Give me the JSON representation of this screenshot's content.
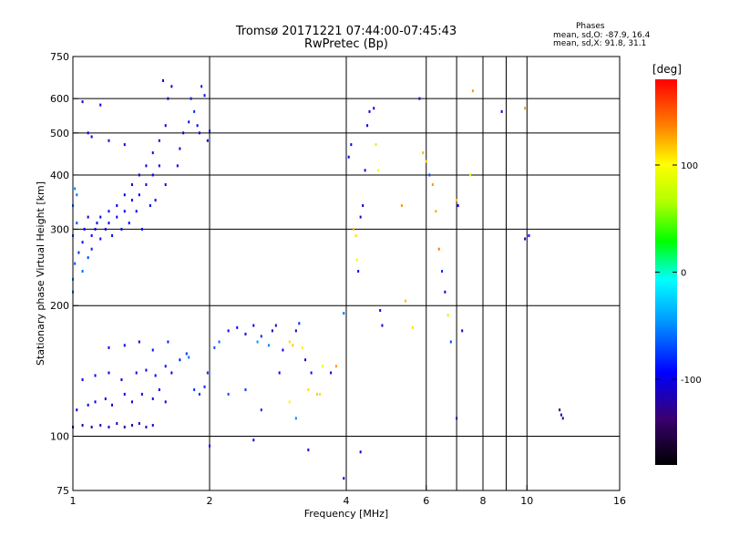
{
  "header": {
    "title": "Tromsø 20171221 07:44:00-07:45:43",
    "subtitle": "RwPretec (Bp)",
    "stats_heading": "Phases",
    "stats_o": "mean, sd,O: -87.9, 16.4",
    "stats_x": "mean, sd,X:  91.8, 31.1"
  },
  "colorbar": {
    "unit": "[deg]",
    "range": [
      -180,
      180
    ],
    "tick_values": [
      100,
      0,
      -100
    ],
    "tick_labels": [
      "100",
      "0",
      "-100"
    ]
  },
  "chart_data": {
    "type": "scatter",
    "xlabel": "Frequency [MHz]",
    "ylabel": "Stationary phase Virtual Height [km]",
    "xscale": "log",
    "yscale": "log",
    "xlim": [
      1,
      16
    ],
    "ylim": [
      75,
      750
    ],
    "grid": true,
    "x_ticks": [
      1,
      2,
      4,
      6,
      8,
      10,
      16
    ],
    "x_tick_labels": [
      "1",
      "2",
      "4",
      "6",
      "8",
      "10",
      "16"
    ],
    "x_gridlines": [
      2,
      4,
      6,
      7,
      8,
      9,
      10
    ],
    "y_ticks": [
      75,
      100,
      200,
      300,
      400,
      500,
      600,
      750
    ],
    "y_tick_labels": [
      "75",
      "100",
      "200",
      "300",
      "400",
      "500",
      "600",
      "750"
    ],
    "y_gridlines": [
      100,
      200,
      300,
      400,
      500,
      600
    ],
    "colorscale": "phase [deg], -180 (black) to 180 (red)",
    "points": [
      [
        1.0,
        215,
        -60
      ],
      [
        1.0,
        230,
        -55
      ],
      [
        1.01,
        250,
        -65
      ],
      [
        1.0,
        290,
        -75
      ],
      [
        1.02,
        310,
        -70
      ],
      [
        1.0,
        340,
        -60
      ],
      [
        1.02,
        360,
        -55
      ],
      [
        1.01,
        372,
        -50
      ],
      [
        1.03,
        265,
        -80
      ],
      [
        1.05,
        240,
        -60
      ],
      [
        1.05,
        280,
        -90
      ],
      [
        1.06,
        300,
        -95
      ],
      [
        1.08,
        258,
        -70
      ],
      [
        1.08,
        320,
        -100
      ],
      [
        1.1,
        270,
        -85
      ],
      [
        1.1,
        290,
        -95
      ],
      [
        1.12,
        300,
        -100
      ],
      [
        1.13,
        310,
        -95
      ],
      [
        1.15,
        285,
        -90
      ],
      [
        1.15,
        320,
        -95
      ],
      [
        1.18,
        300,
        -100
      ],
      [
        1.2,
        310,
        -95
      ],
      [
        1.2,
        330,
        -100
      ],
      [
        1.22,
        290,
        -90
      ],
      [
        1.25,
        320,
        -95
      ],
      [
        1.25,
        340,
        -100
      ],
      [
        1.28,
        300,
        -90
      ],
      [
        1.3,
        330,
        -95
      ],
      [
        1.3,
        360,
        -100
      ],
      [
        1.33,
        310,
        -95
      ],
      [
        1.35,
        350,
        -100
      ],
      [
        1.35,
        380,
        -105
      ],
      [
        1.38,
        330,
        -95
      ],
      [
        1.4,
        360,
        -100
      ],
      [
        1.4,
        400,
        -105
      ],
      [
        1.42,
        300,
        -90
      ],
      [
        1.45,
        380,
        -100
      ],
      [
        1.45,
        420,
        -105
      ],
      [
        1.48,
        340,
        -95
      ],
      [
        1.5,
        400,
        -100
      ],
      [
        1.5,
        450,
        -105
      ],
      [
        1.52,
        350,
        -95
      ],
      [
        1.55,
        420,
        -100
      ],
      [
        1.55,
        480,
        -105
      ],
      [
        1.6,
        380,
        -100
      ],
      [
        1.6,
        520,
        -105
      ],
      [
        1.62,
        600,
        -110
      ],
      [
        1.65,
        640,
        -110
      ],
      [
        1.58,
        660,
        -105
      ],
      [
        1.7,
        420,
        -100
      ],
      [
        1.72,
        460,
        -100
      ],
      [
        1.75,
        500,
        -95
      ],
      [
        1.8,
        530,
        -90
      ],
      [
        1.82,
        600,
        -85
      ],
      [
        1.85,
        560,
        -80
      ],
      [
        1.88,
        520,
        -95
      ],
      [
        1.9,
        500,
        -100
      ],
      [
        1.92,
        640,
        -85
      ],
      [
        1.95,
        610,
        -90
      ],
      [
        1.3,
        470,
        -100
      ],
      [
        1.2,
        480,
        -100
      ],
      [
        1.1,
        490,
        -100
      ],
      [
        1.08,
        500,
        -100
      ],
      [
        1.05,
        590,
        -105
      ],
      [
        1.15,
        580,
        -100
      ],
      [
        1.0,
        105,
        -110
      ],
      [
        1.05,
        106,
        -120
      ],
      [
        1.1,
        105,
        -125
      ],
      [
        1.15,
        106,
        -120
      ],
      [
        1.2,
        105,
        -115
      ],
      [
        1.25,
        107,
        -120
      ],
      [
        1.3,
        105,
        -125
      ],
      [
        1.35,
        106,
        -120
      ],
      [
        1.4,
        107,
        -115
      ],
      [
        1.45,
        105,
        -120
      ],
      [
        1.5,
        106,
        -110
      ],
      [
        1.02,
        115,
        -100
      ],
      [
        1.08,
        118,
        -105
      ],
      [
        1.12,
        120,
        -95
      ],
      [
        1.18,
        122,
        -100
      ],
      [
        1.22,
        118,
        -105
      ],
      [
        1.3,
        125,
        -95
      ],
      [
        1.35,
        120,
        -100
      ],
      [
        1.42,
        125,
        -105
      ],
      [
        1.5,
        122,
        -100
      ],
      [
        1.55,
        128,
        -95
      ],
      [
        1.6,
        120,
        -100
      ],
      [
        1.05,
        135,
        -100
      ],
      [
        1.12,
        138,
        -95
      ],
      [
        1.2,
        140,
        -100
      ],
      [
        1.28,
        135,
        -105
      ],
      [
        1.38,
        140,
        -100
      ],
      [
        1.45,
        142,
        -95
      ],
      [
        1.52,
        138,
        -100
      ],
      [
        1.6,
        145,
        -90
      ],
      [
        1.65,
        140,
        -95
      ],
      [
        1.72,
        150,
        -85
      ],
      [
        1.78,
        155,
        -80
      ],
      [
        1.2,
        160,
        -100
      ],
      [
        1.3,
        162,
        -95
      ],
      [
        1.4,
        165,
        -100
      ],
      [
        1.5,
        158,
        -90
      ],
      [
        1.62,
        165,
        -85
      ],
      [
        1.8,
        152,
        -60
      ],
      [
        1.85,
        128,
        -75
      ],
      [
        1.9,
        125,
        -80
      ],
      [
        1.95,
        130,
        -85
      ],
      [
        1.98,
        140,
        -80
      ],
      [
        2.05,
        160,
        -70
      ],
      [
        2.1,
        165,
        -60
      ],
      [
        2.2,
        175,
        -90
      ],
      [
        2.3,
        178,
        -100
      ],
      [
        2.4,
        172,
        -95
      ],
      [
        2.5,
        180,
        -100
      ],
      [
        2.55,
        165,
        -45
      ],
      [
        2.6,
        170,
        -80
      ],
      [
        2.7,
        162,
        -50
      ],
      [
        2.75,
        175,
        -120
      ],
      [
        2.8,
        180,
        -115
      ],
      [
        2.85,
        140,
        -95
      ],
      [
        2.9,
        158,
        -100
      ],
      [
        3.0,
        165,
        110
      ],
      [
        3.05,
        162,
        115
      ],
      [
        3.1,
        175,
        -120
      ],
      [
        3.15,
        182,
        -80
      ],
      [
        3.2,
        160,
        105
      ],
      [
        3.25,
        150,
        -110
      ],
      [
        3.3,
        128,
        110
      ],
      [
        3.35,
        140,
        -90
      ],
      [
        3.45,
        125,
        115
      ],
      [
        3.5,
        125,
        110
      ],
      [
        3.55,
        145,
        95
      ],
      [
        3.7,
        140,
        -110
      ],
      [
        2.2,
        125,
        -70
      ],
      [
        2.4,
        128,
        -75
      ],
      [
        2.6,
        115,
        -80
      ],
      [
        3.0,
        120,
        105
      ],
      [
        3.1,
        110,
        -50
      ],
      [
        2.0,
        95,
        -100
      ],
      [
        2.5,
        98,
        -95
      ],
      [
        3.3,
        93,
        -100
      ],
      [
        3.8,
        145,
        130
      ],
      [
        3.95,
        192,
        -60
      ],
      [
        4.05,
        440,
        -100
      ],
      [
        4.1,
        470,
        -95
      ],
      [
        4.15,
        300,
        120
      ],
      [
        4.2,
        290,
        110
      ],
      [
        4.22,
        255,
        90
      ],
      [
        4.25,
        240,
        -90
      ],
      [
        4.3,
        320,
        -110
      ],
      [
        4.35,
        340,
        -120
      ],
      [
        4.4,
        410,
        -100
      ],
      [
        4.45,
        520,
        -95
      ],
      [
        4.5,
        560,
        -105
      ],
      [
        4.6,
        570,
        -100
      ],
      [
        4.65,
        470,
        80
      ],
      [
        4.7,
        410,
        100
      ],
      [
        4.75,
        195,
        -100
      ],
      [
        4.8,
        180,
        -110
      ],
      [
        5.3,
        340,
        130
      ],
      [
        5.4,
        205,
        120
      ],
      [
        5.6,
        178,
        110
      ],
      [
        5.9,
        450,
        120
      ],
      [
        6.0,
        430,
        115
      ],
      [
        6.1,
        400,
        -70
      ],
      [
        6.2,
        380,
        130
      ],
      [
        6.3,
        330,
        125
      ],
      [
        6.4,
        270,
        140
      ],
      [
        6.5,
        240,
        -80
      ],
      [
        6.6,
        215,
        -100
      ],
      [
        6.7,
        190,
        80
      ],
      [
        6.8,
        165,
        -70
      ],
      [
        7.0,
        350,
        120
      ],
      [
        7.05,
        340,
        -100
      ],
      [
        7.2,
        175,
        -110
      ],
      [
        7.5,
        400,
        90
      ],
      [
        7.6,
        625,
        130
      ],
      [
        8.8,
        560,
        -100
      ],
      [
        9.9,
        570,
        130
      ],
      [
        9.9,
        285,
        -110
      ],
      [
        10.1,
        290,
        -100
      ],
      [
        11.8,
        115,
        -130
      ],
      [
        11.9,
        112,
        -120
      ],
      [
        12.0,
        110,
        -125
      ],
      [
        7.0,
        110,
        -120
      ],
      [
        5.8,
        600,
        -110
      ],
      [
        3.95,
        80,
        -100
      ],
      [
        4.3,
        92,
        -110
      ],
      [
        2.0,
        505,
        -95
      ],
      [
        1.98,
        480,
        -100
      ]
    ]
  }
}
